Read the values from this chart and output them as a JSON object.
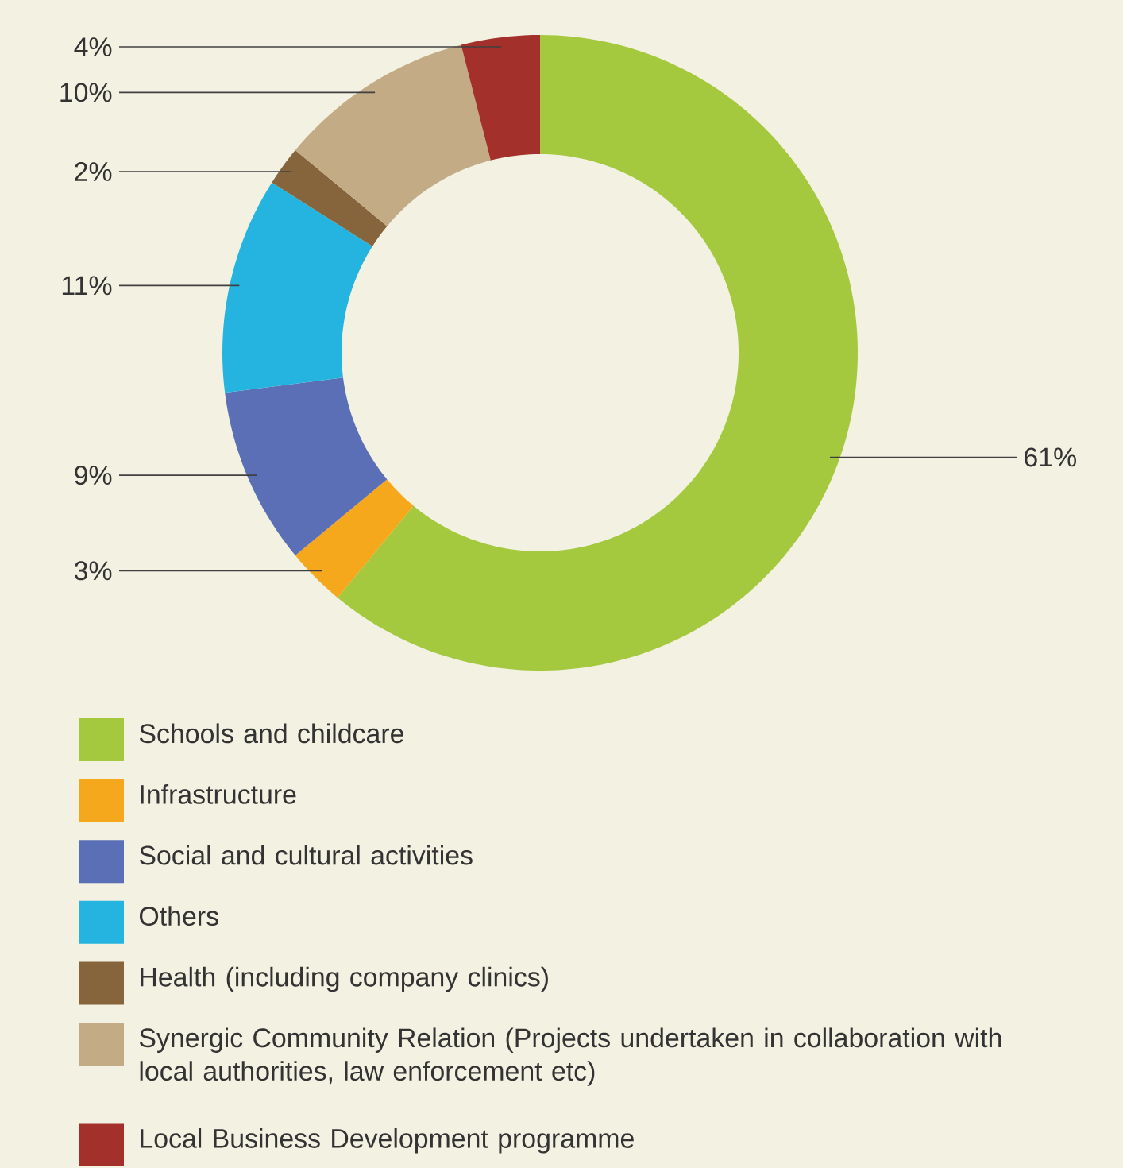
{
  "chart_data": {
    "type": "donut",
    "categories": [
      "Schools and childcare",
      "Infrastructure",
      "Social and cultural activities",
      "Others",
      "Health (including company clinics)",
      "Synergic Community Relation (Projects undertaken in collaboration with local authorities, law enforcement etc)",
      "Local Business Development programme"
    ],
    "values": [
      61,
      3,
      9,
      11,
      2,
      10,
      4
    ],
    "value_labels": [
      "61%",
      "3%",
      "9%",
      "11%",
      "2%",
      "10%",
      "4%"
    ],
    "colors": [
      "#a4c93e",
      "#f6a81c",
      "#5a6fb5",
      "#25b4e0",
      "#86653c",
      "#c2ab85",
      "#a3302a"
    ],
    "legend": "bottom"
  }
}
